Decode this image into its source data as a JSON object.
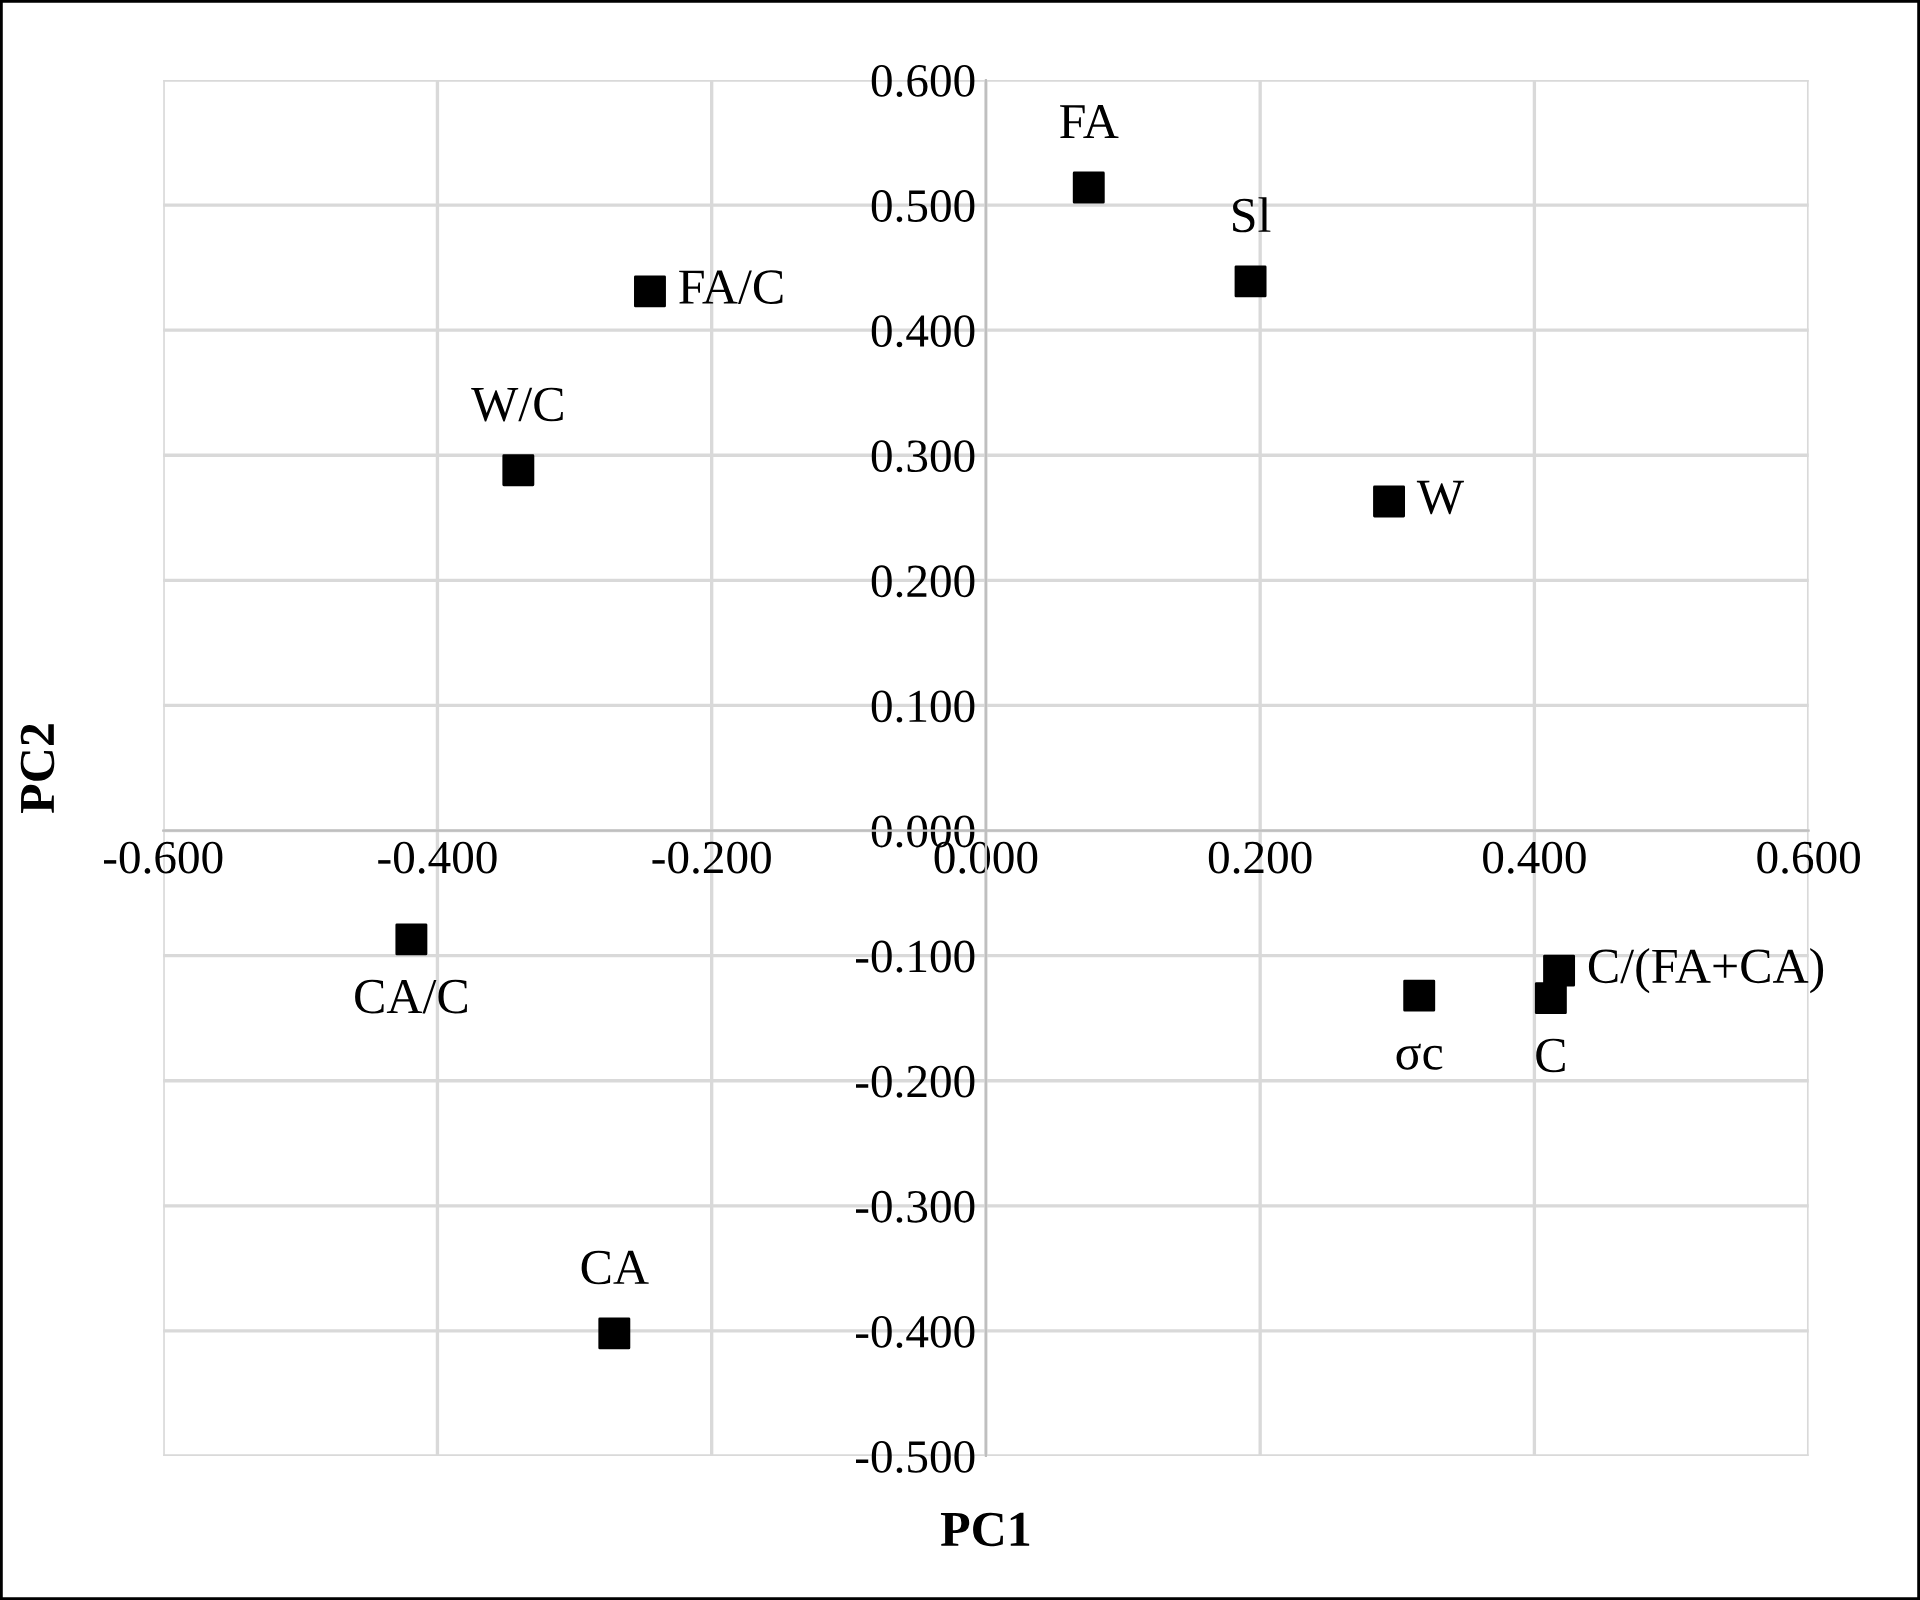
{
  "chart_data": {
    "type": "scatter",
    "xlabel": "PC1",
    "ylabel": "PC2",
    "x": [
      0.075,
      0.193,
      0.294,
      -0.245,
      -0.341,
      -0.419,
      -0.271,
      0.316,
      0.412,
      0.418
    ],
    "series": [
      {
        "color": "#000000",
        "values": [
          0.514,
          0.439,
          0.263,
          0.431,
          0.288,
          -0.087,
          -0.402,
          -0.132,
          -0.134,
          -0.112
        ]
      }
    ],
    "annotations": [
      {
        "text": "FA",
        "x": 0.075,
        "y": 0.514
      },
      {
        "text": "Sl",
        "x": 0.193,
        "y": 0.439
      },
      {
        "text": "W",
        "x": 0.294,
        "y": 0.263
      },
      {
        "text": "FA/C",
        "x": -0.245,
        "y": 0.431
      },
      {
        "text": "W/C",
        "x": -0.341,
        "y": 0.288
      },
      {
        "text": "CA/C",
        "x": -0.419,
        "y": -0.087
      },
      {
        "text": "CA",
        "x": -0.271,
        "y": -0.402
      },
      {
        "text": "σc",
        "x": 0.316,
        "y": -0.132
      },
      {
        "text": "C",
        "x": 0.412,
        "y": -0.134
      },
      {
        "text": "C/(FA+CA)",
        "x": 0.418,
        "y": -0.112
      }
    ],
    "xlim": [
      -0.6,
      0.6
    ],
    "ylim": [
      -0.5,
      0.6
    ],
    "xticks": [
      {
        "value": -0.6,
        "label": "-0.600"
      },
      {
        "value": -0.4,
        "label": "-0.400"
      },
      {
        "value": -0.2,
        "label": "-0.200"
      },
      {
        "value": 0,
        "label": "0.000"
      },
      {
        "value": 0.2,
        "label": "0.200"
      },
      {
        "value": 0.4,
        "label": "0.400"
      },
      {
        "value": 0.6,
        "label": "0.600"
      }
    ],
    "yticks": [
      {
        "value": -0.5,
        "label": "-0.500"
      },
      {
        "value": -0.4,
        "label": "-0.400"
      },
      {
        "value": -0.3,
        "label": "-0.300"
      },
      {
        "value": -0.2,
        "label": "-0.200"
      },
      {
        "value": -0.1,
        "label": "-0.100"
      },
      {
        "value": 0,
        "label": "0.000"
      },
      {
        "value": 0.1,
        "label": "0.100"
      },
      {
        "value": 0.2,
        "label": "0.200"
      },
      {
        "value": 0.3,
        "label": "0.300"
      },
      {
        "value": 0.4,
        "label": "0.400"
      },
      {
        "value": 0.5,
        "label": "0.500"
      },
      {
        "value": 0.6,
        "label": "0.600"
      }
    ],
    "grid": true,
    "marker": "square"
  }
}
